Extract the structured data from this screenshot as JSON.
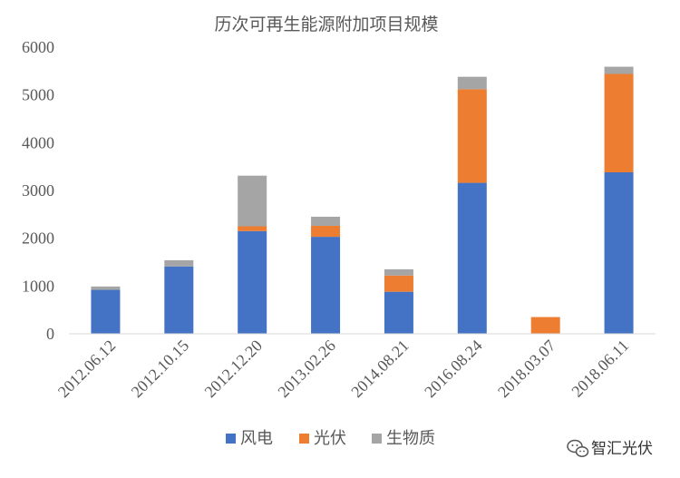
{
  "chart_data": {
    "type": "bar",
    "stacked": true,
    "title": "历次可再生能源附加项目规模",
    "xlabel": "",
    "ylabel": "",
    "categories": [
      "2012.06.12",
      "2012.10.15",
      "2012.12.20",
      "2013.02.26",
      "2014.08.21",
      "2016.08.24",
      "2018.03.07",
      "2018.06.11"
    ],
    "series": [
      {
        "name": "风电",
        "color": "#4472C4",
        "values": [
          920,
          1410,
          2150,
          2030,
          880,
          3160,
          0,
          3380
        ]
      },
      {
        "name": "光伏",
        "color": "#ED7D31",
        "values": [
          0,
          0,
          100,
          230,
          340,
          1960,
          350,
          2060
        ]
      },
      {
        "name": "生物质",
        "color": "#A5A5A5",
        "values": [
          70,
          130,
          1060,
          190,
          130,
          260,
          0,
          150
        ]
      }
    ],
    "ylim": [
      0,
      6000
    ],
    "yticks": [
      0,
      1000,
      2000,
      3000,
      4000,
      5000,
      6000
    ],
    "grid": false,
    "legend": "bottom"
  },
  "watermark": {
    "icon": "wechat-icon",
    "text": "智汇光伏"
  }
}
